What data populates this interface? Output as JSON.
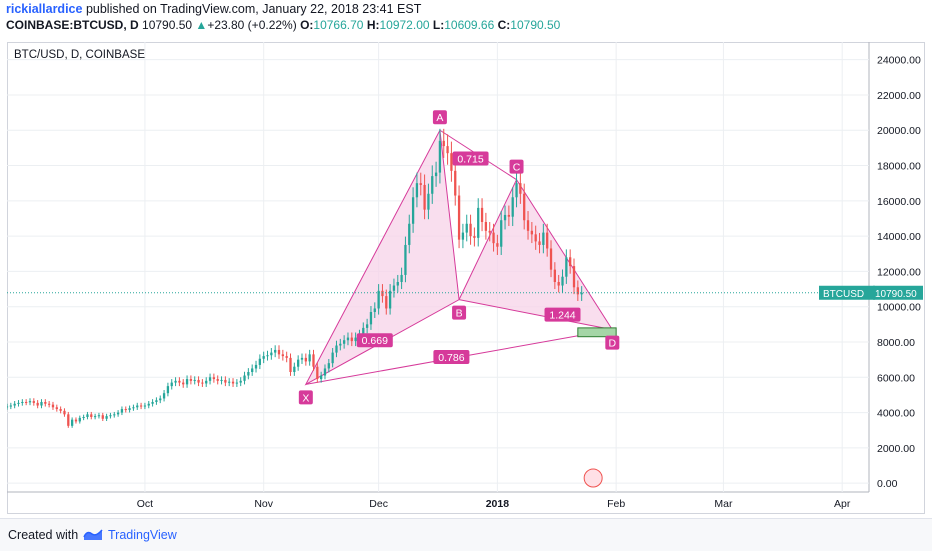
{
  "header": {
    "user": "rickiallardice",
    "published": "published on TradingView.com, January 22, 2018 23:41 EST",
    "symbol": "COINBASE:BTCUSD, D",
    "last": "10790.50",
    "change": "+23.80 (+0.22%)",
    "o_label": "O:",
    "o_val": "10766.70",
    "h_label": "H:",
    "h_val": "10972.00",
    "l_label": "L:",
    "l_val": "10609.66",
    "c_label": "C:",
    "c_val": "10790.50"
  },
  "footer": {
    "created": "Created with",
    "brand": "TradingView"
  },
  "colors": {
    "up": "#26a69a",
    "down": "#ef5350",
    "pattern": "#d63a9a",
    "fill": "#f7d3e8",
    "price_line": "#26a69a",
    "grid": "#eceff2"
  },
  "chart_data": {
    "type": "candlestick",
    "title": "BTC/USD, D, COINBASE",
    "ylim": [
      -500,
      25000
    ],
    "y_ticks": [
      "24000.00",
      "22000.00",
      "20000.00",
      "18000.00",
      "16000.00",
      "14000.00",
      "12000.00",
      "10000.00",
      "8000.00",
      "6000.00",
      "4000.00",
      "2000.00",
      "0.00"
    ],
    "y_tick_values": [
      24000,
      22000,
      20000,
      18000,
      16000,
      14000,
      12000,
      10000,
      8000,
      6000,
      4000,
      2000,
      0
    ],
    "x_range": [
      "2017-08-26",
      "2018-04-08"
    ],
    "x_ticks": [
      {
        "label": "Oct",
        "date": "2017-10-01"
      },
      {
        "label": "Nov",
        "date": "2017-11-01"
      },
      {
        "label": "Dec",
        "date": "2017-12-01"
      },
      {
        "label": "2018",
        "date": "2018-01-01"
      },
      {
        "label": "Feb",
        "date": "2018-02-01"
      },
      {
        "label": "Mar",
        "date": "2018-03-01"
      },
      {
        "label": "Apr",
        "date": "2018-04-01"
      }
    ],
    "price_label": {
      "symbol": "BTCUSD",
      "value": 10790.5
    },
    "candles_start": "2017-08-26",
    "closes": [
      4350,
      4400,
      4500,
      4550,
      4600,
      4580,
      4650,
      4550,
      4400,
      4600,
      4500,
      4450,
      4300,
      4200,
      4100,
      3900,
      3250,
      3600,
      3500,
      3700,
      3750,
      3900,
      3750,
      3800,
      3850,
      3650,
      3800,
      3850,
      3900,
      4000,
      4200,
      4150,
      4250,
      4300,
      4400,
      4350,
      4400,
      4500,
      4600,
      4700,
      4800,
      5100,
      5500,
      5700,
      5800,
      5700,
      5600,
      5900,
      5800,
      5850,
      5700,
      5650,
      5800,
      6000,
      5900,
      5800,
      5850,
      5700,
      5750,
      5650,
      5700,
      5800,
      6100,
      6300,
      6500,
      6700,
      7050,
      7200,
      7250,
      7400,
      7550,
      7300,
      7200,
      7100,
      6300,
      6600,
      7000,
      7100,
      6900,
      7300,
      6600,
      5900,
      6100,
      6500,
      6800,
      7400,
      7800,
      7900,
      8100,
      8250,
      8050,
      8250,
      8400,
      8800,
      9000,
      9700,
      9900,
      10900,
      10600,
      9900,
      10900,
      11200,
      11400,
      11800,
      13500,
      14700,
      16200,
      17000,
      16900,
      15500,
      16400,
      17400,
      17600,
      19400,
      19100,
      18700,
      17700,
      16300,
      13800,
      14200,
      14700,
      14000,
      13900,
      15600,
      14800,
      14300,
      14200,
      13600,
      13400,
      14900,
      15200,
      15100,
      16200,
      17000,
      16400,
      14900,
      14300,
      14100,
      13700,
      13500,
      14200,
      13300,
      12100,
      11400,
      11200,
      11700,
      12800,
      12300,
      11100,
      10700,
      10790
    ],
    "pattern_points": [
      {
        "label": "X",
        "date": "2017-11-12",
        "price": 5600
      },
      {
        "label": "A",
        "date": "2017-12-17",
        "price": 20000
      },
      {
        "label": "B",
        "date": "2017-12-22",
        "price": 10400
      },
      {
        "label": "C",
        "date": "2018-01-06",
        "price": 17200
      },
      {
        "label": "D",
        "date": "2018-01-31",
        "price": 8700
      }
    ],
    "ratios": [
      {
        "label": "0.669",
        "date": "2017-11-30",
        "price": 8100
      },
      {
        "label": "0.715",
        "date": "2017-12-25",
        "price": 18400
      },
      {
        "label": "1.244",
        "date": "2018-01-18",
        "price": 9550
      },
      {
        "label": "0.786",
        "date": "2017-12-20",
        "price": 7150
      }
    ],
    "prz_box": {
      "date_start": "2018-01-22",
      "date_end": "2018-02-01",
      "price_low": 8300,
      "price_high": 8800
    }
  }
}
